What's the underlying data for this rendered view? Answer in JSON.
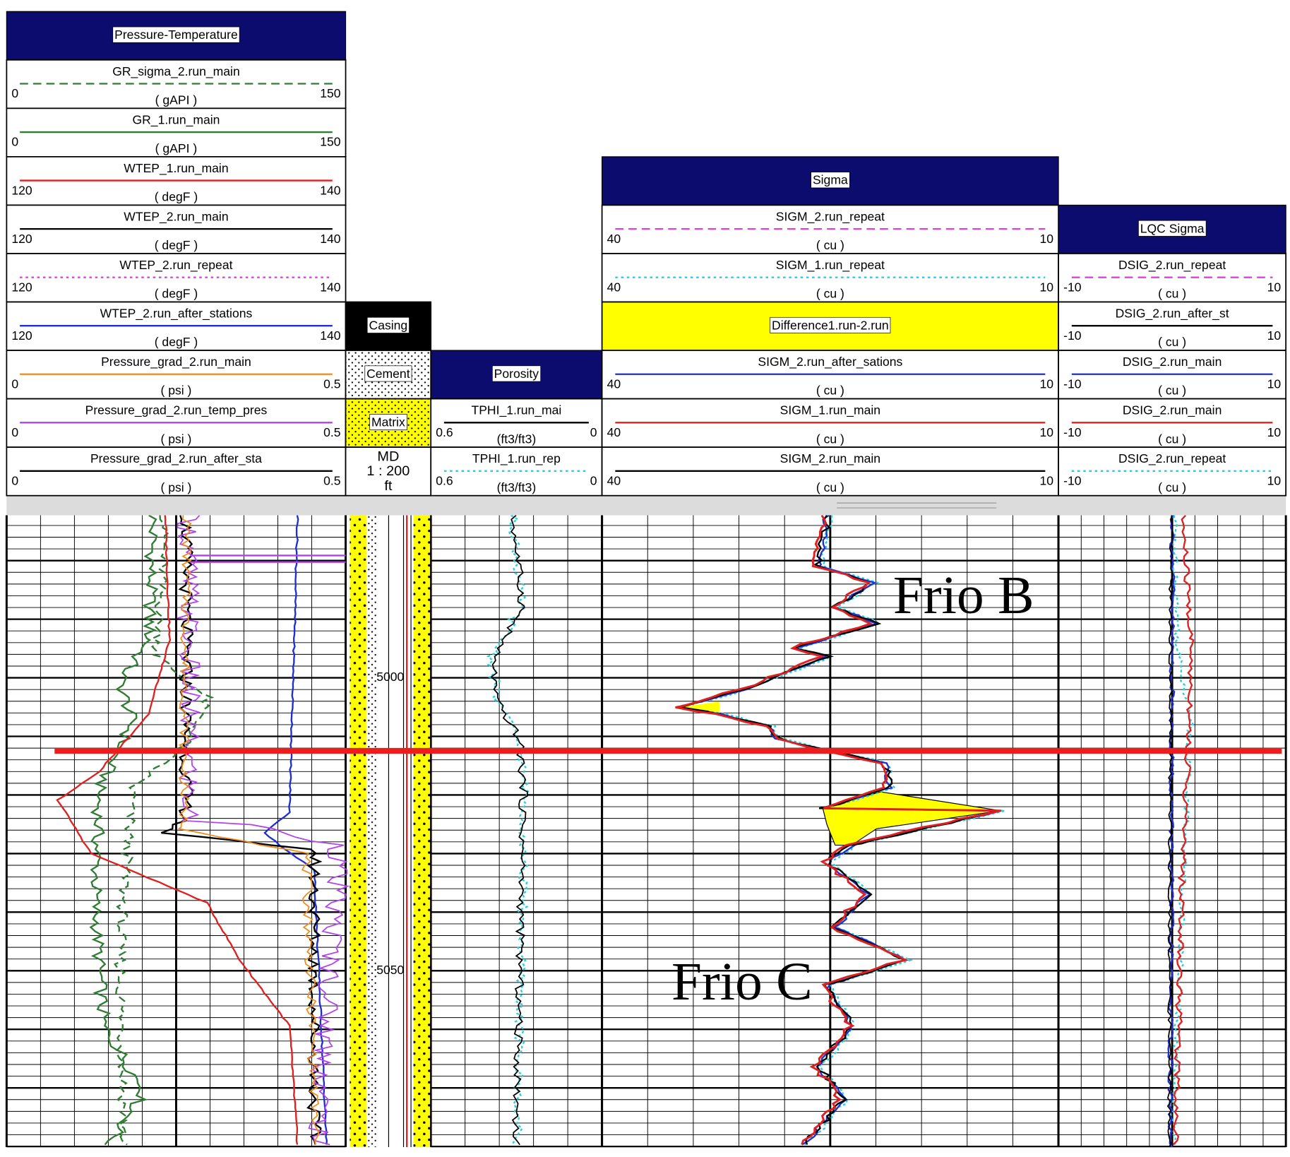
{
  "tracks": [
    {
      "title": "Pressure-Temperature",
      "rows": [
        {
          "name": "GR_sigma_2.run_main",
          "unit": "( gAPI )",
          "left": 0,
          "right": 150,
          "color": "#2e7d32",
          "style": "dashed"
        },
        {
          "name": "GR_1.run_main",
          "unit": "( gAPI )",
          "left": 0,
          "right": 150,
          "color": "#2e7d32",
          "style": "solid"
        },
        {
          "name": "WTEP_1.run_main",
          "unit": "( degF )",
          "left": 120,
          "right": 140,
          "color": "#e02020",
          "style": "solid"
        },
        {
          "name": "WTEP_2.run_main",
          "unit": "( degF )",
          "left": 120,
          "right": 140,
          "color": "#000000",
          "style": "solid"
        },
        {
          "name": "WTEP_2.run_repeat",
          "unit": "( degF )",
          "left": 120,
          "right": 140,
          "color": "#e040e0",
          "style": "dotted"
        },
        {
          "name": "WTEP_2.run_after_stations",
          "unit": "( degF )",
          "left": 120,
          "right": 140,
          "color": "#1f2fd0",
          "style": "solid"
        },
        {
          "name": "Pressure_grad_2.run_main",
          "unit": "( psi )",
          "left": 0,
          "right": 0.5,
          "color": "#f08a1c",
          "style": "solid"
        },
        {
          "name": "Pressure_grad_2.run_temp_pres",
          "unit": "( psi )",
          "left": 0,
          "right": 0.5,
          "color": "#b040f0",
          "style": "solid"
        },
        {
          "name": "Pressure_grad_2.run_after_sta",
          "unit": "( psi )",
          "left": 0,
          "right": 0.5,
          "color": "#000000",
          "style": "solid"
        }
      ]
    },
    {
      "title": "Porosity",
      "rows": [
        {
          "name": "TPHI_1.run_mai",
          "unit": "(ft3/ft3)",
          "left": 0.6,
          "right": 0,
          "color": "#000000",
          "style": "solid"
        },
        {
          "name": "TPHI_1.run_rep",
          "unit": "(ft3/ft3)",
          "left": 0.6,
          "right": 0,
          "color": "#20d0e0",
          "style": "dotted"
        }
      ]
    },
    {
      "title": "Sigma",
      "rows": [
        {
          "name": "SIGM_2.run_repeat",
          "unit": "( cu )",
          "left": 40,
          "right": 10,
          "color": "#e040e0",
          "style": "dashed"
        },
        {
          "name": "SIGM_1.run_repeat",
          "unit": "( cu )",
          "left": 40,
          "right": 10,
          "color": "#20d0e0",
          "style": "dotted"
        },
        {
          "name": "Difference1.run-2.run",
          "fill": "#ffff00"
        },
        {
          "name": "SIGM_2.run_after_sations",
          "unit": "( cu )",
          "left": 40,
          "right": 10,
          "color": "#1f2fd0",
          "style": "solid"
        },
        {
          "name": "SIGM_1.run_main",
          "unit": "( cu )",
          "left": 40,
          "right": 10,
          "color": "#e02020",
          "style": "solid"
        },
        {
          "name": "SIGM_2.run_main",
          "unit": "( cu )",
          "left": 40,
          "right": 10,
          "color": "#000000",
          "style": "solid"
        }
      ]
    },
    {
      "title": "LQC Sigma",
      "rows": [
        {
          "name": "DSIG_2.run_repeat",
          "unit": "( cu )",
          "left": -10,
          "right": 10,
          "color": "#e040e0",
          "style": "dashed"
        },
        {
          "name": "DSIG_2.run_after_st",
          "unit": "( cu )",
          "left": -10,
          "right": 10,
          "color": "#000000",
          "style": "solid"
        },
        {
          "name": "DSIG_2.run_main",
          "unit": "( cu )",
          "left": -10,
          "right": 10,
          "color": "#1f2fd0",
          "style": "solid"
        },
        {
          "name": "DSIG_2.run_main",
          "unit": "( cu )",
          "left": -10,
          "right": 10,
          "color": "#e02020",
          "style": "solid"
        },
        {
          "name": "DSIG_2.run_repeat",
          "unit": "( cu )",
          "left": -10,
          "right": 10,
          "color": "#20d0e0",
          "style": "dotted"
        }
      ]
    }
  ],
  "casing_column": {
    "items": [
      {
        "label": "Casing",
        "fill": "#000000"
      },
      {
        "label": "Cement",
        "fill": "#ffffff"
      },
      {
        "label": "Matrix",
        "fill": "#ffff00"
      }
    ],
    "scale": [
      "MD",
      "1 : 200",
      "ft"
    ]
  },
  "depth_labels": [
    5000,
    5050
  ],
  "annotations": [
    "Frio B",
    "Frio C"
  ]
}
